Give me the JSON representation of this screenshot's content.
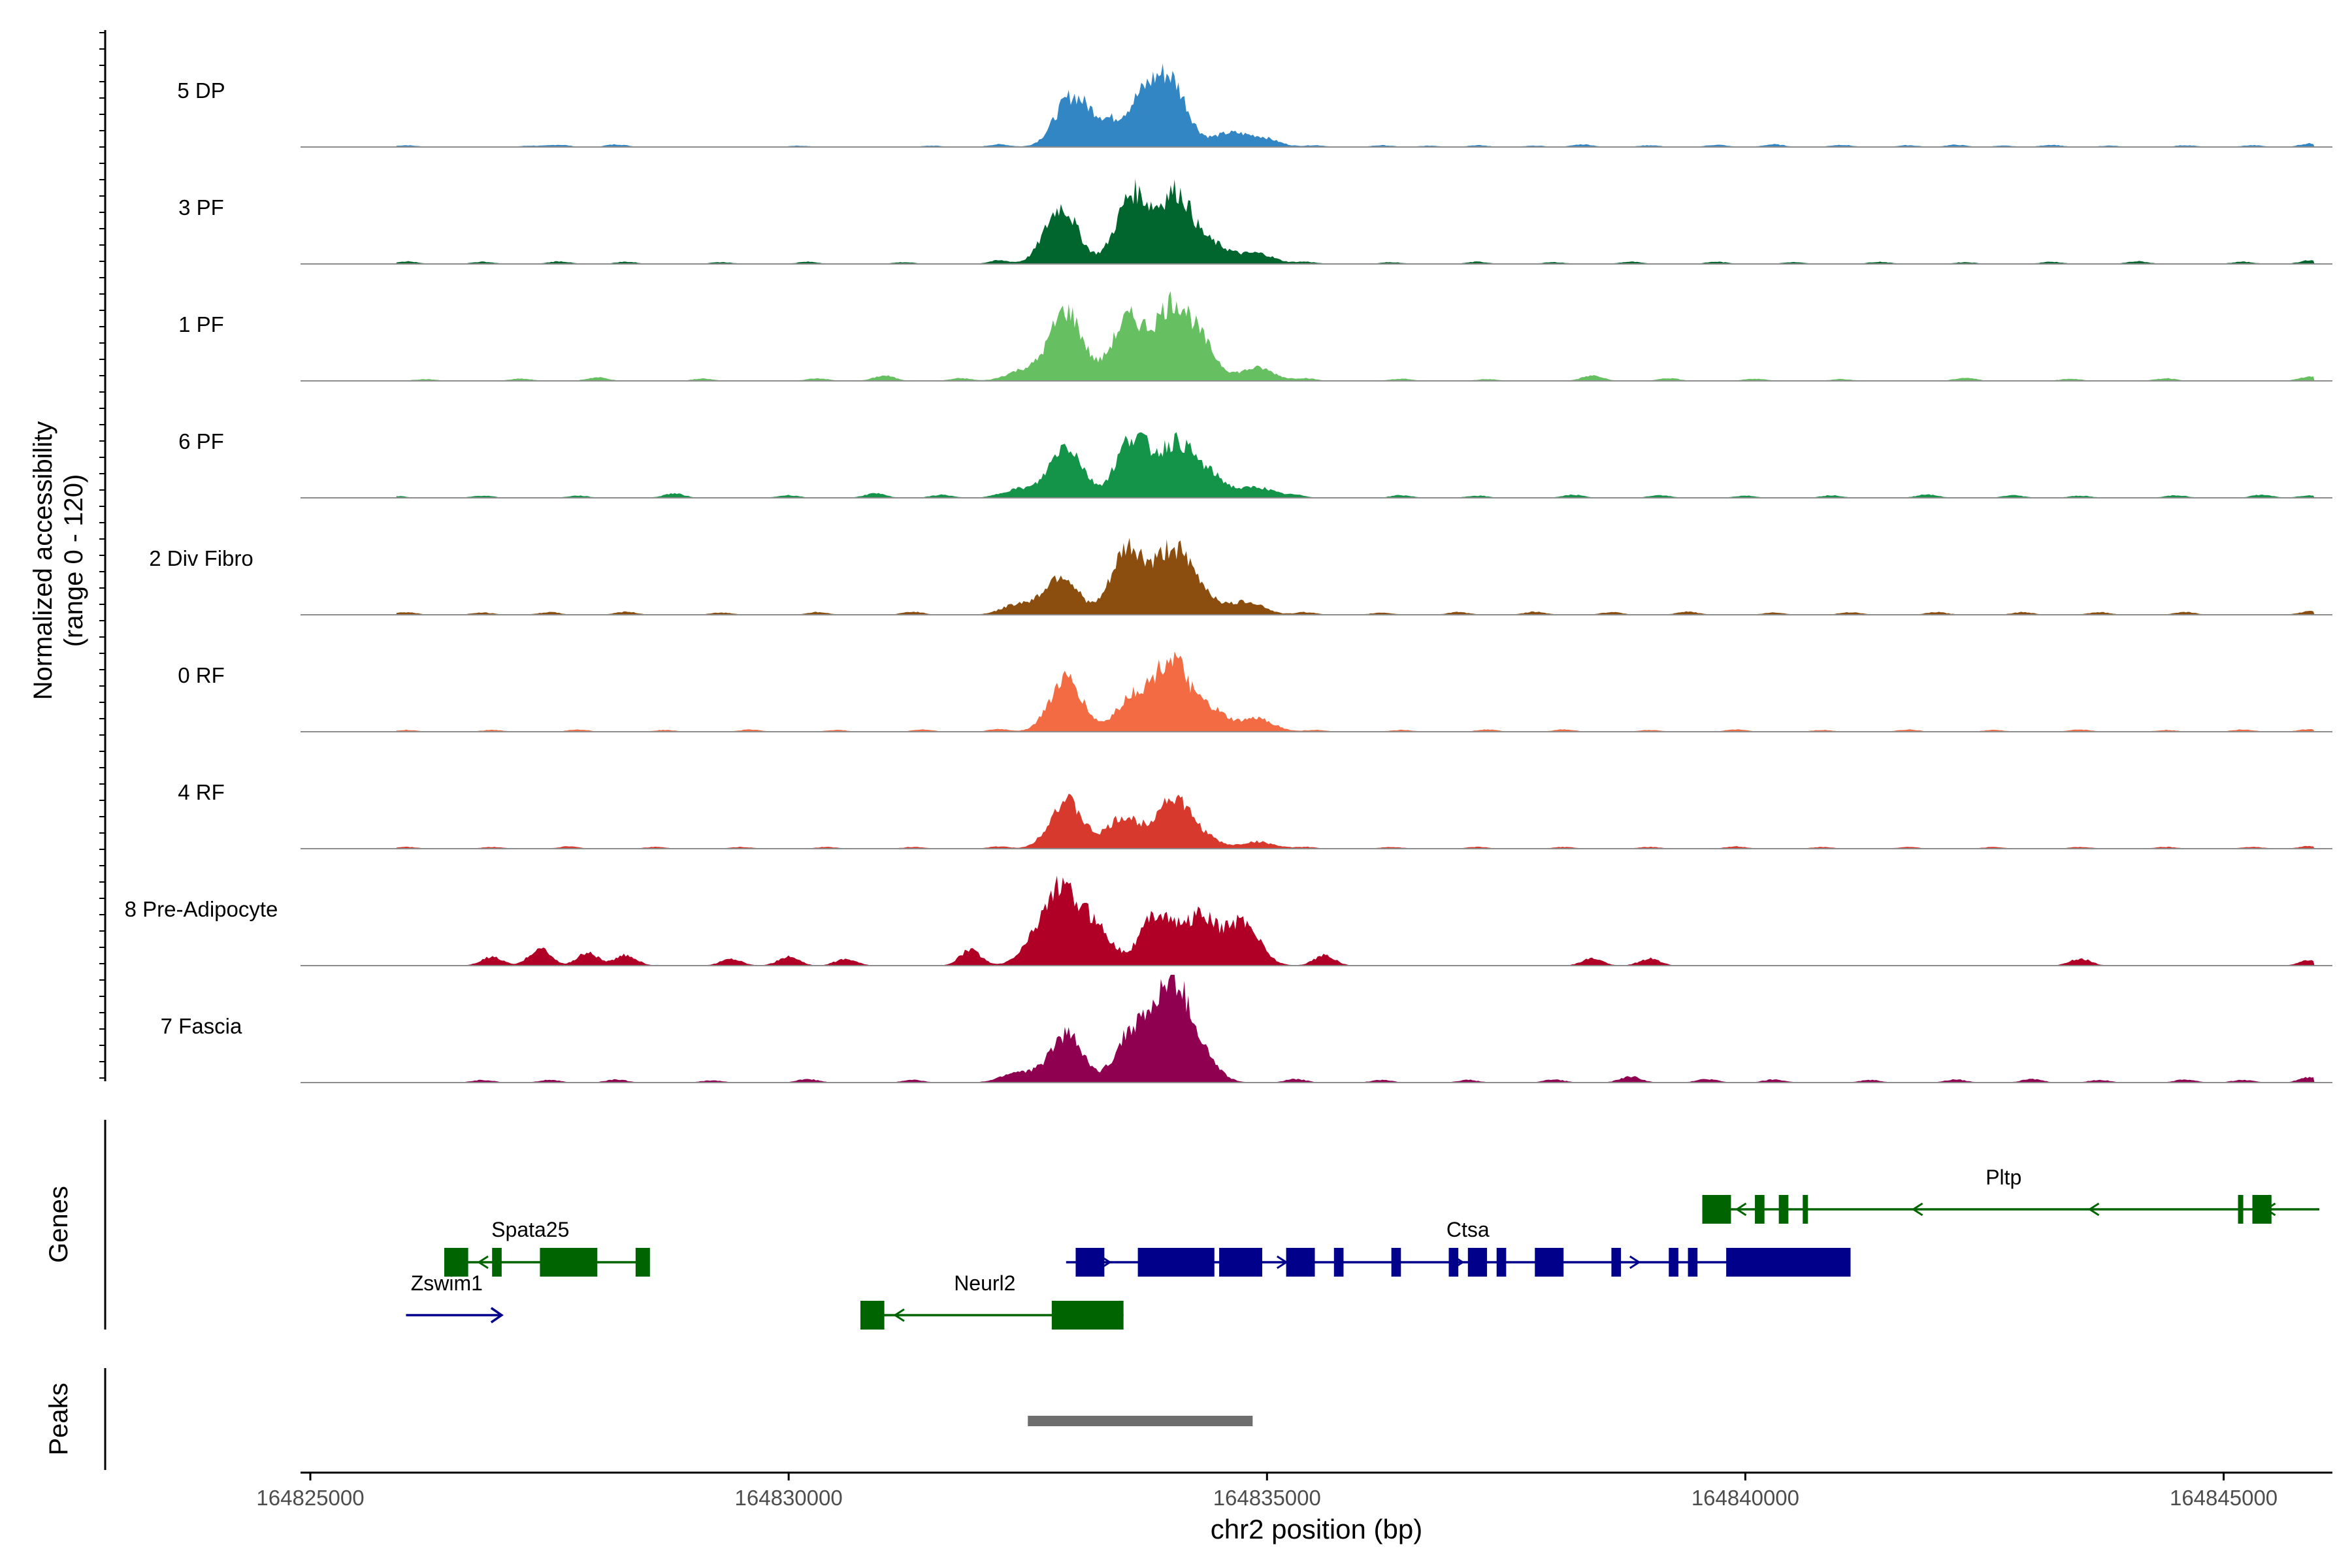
{
  "chart_data": {
    "type": "area",
    "title": "",
    "ylabel_line1": "Normalized accessibility",
    "ylabel_line2": "(range 0 - 120)",
    "xlabel": "chr2 position (bp)",
    "ylim": [
      0,
      120
    ],
    "xlim": [
      164825000,
      164846000
    ],
    "x_ticks": [
      164825000,
      164830000,
      164835000,
      164840000,
      164845000
    ],
    "x_tick_labels": [
      "164825000",
      "164830000",
      "164835000",
      "164840000",
      "164845000"
    ],
    "tracks": [
      {
        "name": "5 DP",
        "color": "#3286c3",
        "peaks": [
          [
            164832950,
            55
          ],
          [
            164833700,
            50
          ],
          [
            164833300,
            25
          ],
          [
            164834000,
            70
          ],
          [
            164834600,
            15
          ],
          [
            164834950,
            10
          ]
        ],
        "background": [
          [
            164826000,
            2
          ],
          [
            164827300,
            1.5
          ],
          [
            164827600,
            2.5
          ],
          [
            164828200,
            3
          ],
          [
            164830100,
            1.5
          ],
          [
            164831500,
            1.5
          ],
          [
            164832200,
            3
          ],
          [
            164835500,
            2
          ],
          [
            164836200,
            2
          ],
          [
            164836700,
            1.5
          ],
          [
            164837200,
            2
          ],
          [
            164837800,
            1.5
          ],
          [
            164838300,
            3
          ],
          [
            164839000,
            2
          ],
          [
            164839700,
            2.5
          ],
          [
            164840300,
            3
          ],
          [
            164841000,
            2.5
          ],
          [
            164841700,
            2
          ],
          [
            164842200,
            2.5
          ],
          [
            164842700,
            1.5
          ],
          [
            164843200,
            2.5
          ],
          [
            164843800,
            1.5
          ],
          [
            164844600,
            2
          ],
          [
            164845300,
            2
          ],
          [
            164845900,
            4
          ]
        ]
      },
      {
        "name": "3 PF",
        "color": "#00662e",
        "peaks": [
          [
            164832850,
            65
          ],
          [
            164833600,
            80
          ],
          [
            164834050,
            80
          ],
          [
            164834450,
            20
          ],
          [
            164834900,
            12
          ]
        ],
        "background": [
          [
            164826000,
            3
          ],
          [
            164826800,
            2.5
          ],
          [
            164827600,
            3
          ],
          [
            164828300,
            2.5
          ],
          [
            164829300,
            2
          ],
          [
            164830200,
            2.5
          ],
          [
            164831200,
            2
          ],
          [
            164832200,
            4
          ],
          [
            164835400,
            2.5
          ],
          [
            164836300,
            2
          ],
          [
            164837200,
            2.5
          ],
          [
            164838000,
            2
          ],
          [
            164838800,
            2.5
          ],
          [
            164839700,
            2.5
          ],
          [
            164840500,
            2
          ],
          [
            164841400,
            2.5
          ],
          [
            164842300,
            2
          ],
          [
            164843200,
            2.5
          ],
          [
            164844100,
            3
          ],
          [
            164845200,
            2.5
          ],
          [
            164845900,
            4
          ]
        ]
      },
      {
        "name": "1 PF",
        "color": "#66bf60",
        "peaks": [
          [
            164832900,
            80
          ],
          [
            164833550,
            70
          ],
          [
            164834000,
            80
          ],
          [
            164834300,
            40
          ],
          [
            164834900,
            15
          ],
          [
            164832450,
            12
          ]
        ],
        "background": [
          [
            164826200,
            2
          ],
          [
            164827200,
            2.5
          ],
          [
            164828000,
            4
          ],
          [
            164829100,
            2.5
          ],
          [
            164830300,
            3
          ],
          [
            164831000,
            6
          ],
          [
            164831800,
            3
          ],
          [
            164835400,
            3
          ],
          [
            164836400,
            2.5
          ],
          [
            164837300,
            2
          ],
          [
            164838400,
            6
          ],
          [
            164839200,
            3
          ],
          [
            164840100,
            2.5
          ],
          [
            164841000,
            2
          ],
          [
            164842300,
            3.5
          ],
          [
            164843400,
            2.5
          ],
          [
            164844400,
            3
          ],
          [
            164845900,
            5
          ]
        ]
      },
      {
        "name": "6 PF",
        "color": "#139448",
        "peaks": [
          [
            164832900,
            60
          ],
          [
            164833600,
            70
          ],
          [
            164834050,
            60
          ],
          [
            164834400,
            25
          ],
          [
            164834900,
            12
          ],
          [
            164832400,
            10
          ]
        ],
        "background": [
          [
            164825900,
            2
          ],
          [
            164826800,
            2.5
          ],
          [
            164827800,
            2.5
          ],
          [
            164828800,
            5
          ],
          [
            164830000,
            3
          ],
          [
            164830900,
            5
          ],
          [
            164831600,
            3.5
          ],
          [
            164835300,
            3
          ],
          [
            164836400,
            3
          ],
          [
            164837200,
            2.5
          ],
          [
            164838200,
            3.5
          ],
          [
            164839100,
            3
          ],
          [
            164840000,
            2.5
          ],
          [
            164840900,
            3
          ],
          [
            164841900,
            4
          ],
          [
            164842800,
            3
          ],
          [
            164843500,
            2.5
          ],
          [
            164844500,
            3
          ],
          [
            164845400,
            3.5
          ],
          [
            164845900,
            3
          ]
        ]
      },
      {
        "name": "2 Div Fibro",
        "color": "#8b4e0f",
        "peaks": [
          [
            164832850,
            45
          ],
          [
            164833550,
            75
          ],
          [
            164834000,
            70
          ],
          [
            164834300,
            25
          ],
          [
            164832400,
            12
          ],
          [
            164834800,
            15
          ]
        ],
        "background": [
          [
            164826000,
            3
          ],
          [
            164826800,
            2.5
          ],
          [
            164827500,
            3
          ],
          [
            164828300,
            3.5
          ],
          [
            164829300,
            2.5
          ],
          [
            164830300,
            3
          ],
          [
            164831300,
            3.5
          ],
          [
            164835400,
            3
          ],
          [
            164836200,
            2.5
          ],
          [
            164837000,
            3
          ],
          [
            164837800,
            3.5
          ],
          [
            164838600,
            3
          ],
          [
            164839400,
            3.5
          ],
          [
            164840300,
            2.5
          ],
          [
            164841100,
            3
          ],
          [
            164842000,
            3
          ],
          [
            164842900,
            3
          ],
          [
            164843700,
            3
          ],
          [
            164844600,
            3
          ],
          [
            164845900,
            4
          ]
        ]
      },
      {
        "name": "0 RF",
        "color": "#f36b42",
        "peaks": [
          [
            164832900,
            60
          ],
          [
            164833600,
            40
          ],
          [
            164834000,
            80
          ],
          [
            164834400,
            25
          ],
          [
            164834900,
            15
          ]
        ],
        "background": [
          [
            164826000,
            2
          ],
          [
            164826900,
            2
          ],
          [
            164827800,
            2.5
          ],
          [
            164828700,
            2
          ],
          [
            164829600,
            2.5
          ],
          [
            164830500,
            2
          ],
          [
            164831400,
            2.5
          ],
          [
            164832200,
            3
          ],
          [
            164835500,
            2
          ],
          [
            164836400,
            2
          ],
          [
            164837300,
            2.5
          ],
          [
            164838100,
            2.5
          ],
          [
            164839000,
            2
          ],
          [
            164839900,
            2.5
          ],
          [
            164840800,
            2
          ],
          [
            164841700,
            2.5
          ],
          [
            164842600,
            2
          ],
          [
            164843500,
            2.5
          ],
          [
            164844400,
            2
          ],
          [
            164845200,
            2.5
          ],
          [
            164845900,
            3
          ]
        ]
      },
      {
        "name": "4 RF",
        "color": "#d73a2c",
        "peaks": [
          [
            164832900,
            55
          ],
          [
            164833500,
            35
          ],
          [
            164834000,
            55
          ],
          [
            164834300,
            15
          ],
          [
            164834900,
            8
          ]
        ],
        "background": [
          [
            164826000,
            2
          ],
          [
            164826900,
            2
          ],
          [
            164827700,
            2.5
          ],
          [
            164828600,
            2
          ],
          [
            164829500,
            2
          ],
          [
            164830400,
            2
          ],
          [
            164831300,
            2
          ],
          [
            164832200,
            2.5
          ],
          [
            164835400,
            2
          ],
          [
            164836300,
            2
          ],
          [
            164837200,
            2
          ],
          [
            164838100,
            2
          ],
          [
            164839000,
            2
          ],
          [
            164839900,
            2.5
          ],
          [
            164840800,
            2
          ],
          [
            164841700,
            2
          ],
          [
            164842600,
            2
          ],
          [
            164843500,
            2
          ],
          [
            164844400,
            2
          ],
          [
            164845300,
            2
          ],
          [
            164845900,
            3
          ]
        ]
      },
      {
        "name": "8 Pre-Adipocyte",
        "color": "#b00026",
        "peaks": [
          [
            164832850,
            75
          ],
          [
            164833200,
            45
          ],
          [
            164833850,
            60
          ],
          [
            164834300,
            55
          ],
          [
            164834750,
            50
          ],
          [
            164832600,
            25
          ]
        ],
        "background": [
          [
            164826900,
            10
          ],
          [
            164827400,
            20
          ],
          [
            164827900,
            15
          ],
          [
            164828300,
            12
          ],
          [
            164829400,
            8
          ],
          [
            164830000,
            10
          ],
          [
            164830600,
            8
          ],
          [
            164831900,
            18
          ],
          [
            164835600,
            12
          ],
          [
            164838400,
            8
          ],
          [
            164839000,
            8
          ],
          [
            164843500,
            8
          ],
          [
            164845900,
            6
          ]
        ]
      },
      {
        "name": "7 Fascia",
        "color": "#8f0050",
        "peaks": [
          [
            164832900,
            55
          ],
          [
            164833600,
            60
          ],
          [
            164834000,
            110
          ],
          [
            164834300,
            30
          ],
          [
            164832400,
            12
          ]
        ],
        "background": [
          [
            164826800,
            3
          ],
          [
            164827500,
            3
          ],
          [
            164828200,
            3.5
          ],
          [
            164829200,
            2.5
          ],
          [
            164830200,
            4
          ],
          [
            164831300,
            3
          ],
          [
            164835300,
            4
          ],
          [
            164836200,
            3
          ],
          [
            164837100,
            3
          ],
          [
            164838000,
            3.5
          ],
          [
            164838800,
            7
          ],
          [
            164839600,
            4
          ],
          [
            164840300,
            3.5
          ],
          [
            164841300,
            3
          ],
          [
            164842200,
            3.5
          ],
          [
            164843000,
            4
          ],
          [
            164843700,
            3
          ],
          [
            164844600,
            3.5
          ],
          [
            164845200,
            3
          ],
          [
            164845900,
            6
          ]
        ]
      }
    ],
    "genes_track_label": "Genes",
    "genes": [
      {
        "name": "Zswim1",
        "strand": "+",
        "color": "#00008b",
        "start": 164826000,
        "end": 164827000,
        "exons": []
      },
      {
        "name": "Spata25",
        "strand": "-",
        "color": "#006400",
        "start": 164826400,
        "end": 164828500,
        "exons": [
          [
            164826400,
            164826650
          ],
          [
            164826900,
            164827000
          ],
          [
            164827400,
            164828000
          ],
          [
            164828400,
            164828550
          ]
        ]
      },
      {
        "name": "Neurl2",
        "strand": "-",
        "color": "#006400",
        "start": 164830750,
        "end": 164833500,
        "exons": [
          [
            164830750,
            164831000
          ],
          [
            164832750,
            164833500
          ]
        ]
      },
      {
        "name": "Ctsa",
        "strand": "+",
        "color": "#00008b",
        "start": 164832900,
        "end": 164841100,
        "exons": [
          [
            164833000,
            164833300
          ],
          [
            164833650,
            164834450
          ],
          [
            164834500,
            164834950
          ],
          [
            164835200,
            164835500
          ],
          [
            164835700,
            164835800
          ],
          [
            164836300,
            164836400
          ],
          [
            164836900,
            164837000
          ],
          [
            164837100,
            164837300
          ],
          [
            164837400,
            164837500
          ],
          [
            164837800,
            164838100
          ],
          [
            164838600,
            164838700
          ],
          [
            164839200,
            164839300
          ],
          [
            164839400,
            164839500
          ],
          [
            164839800,
            164841100
          ]
        ]
      },
      {
        "name": "Pltp",
        "strand": "-",
        "color": "#006400",
        "start": 164839550,
        "end": 164846000,
        "exons": [
          [
            164839550,
            164839850
          ],
          [
            164840100,
            164840200
          ],
          [
            164840350,
            164840450
          ],
          [
            164840600,
            164840650
          ],
          [
            164845150,
            164845200
          ],
          [
            164845300,
            164845500
          ]
        ]
      }
    ],
    "peaks_track_label": "Peaks",
    "peak_regions": [
      [
        164832500,
        164834850
      ]
    ]
  }
}
